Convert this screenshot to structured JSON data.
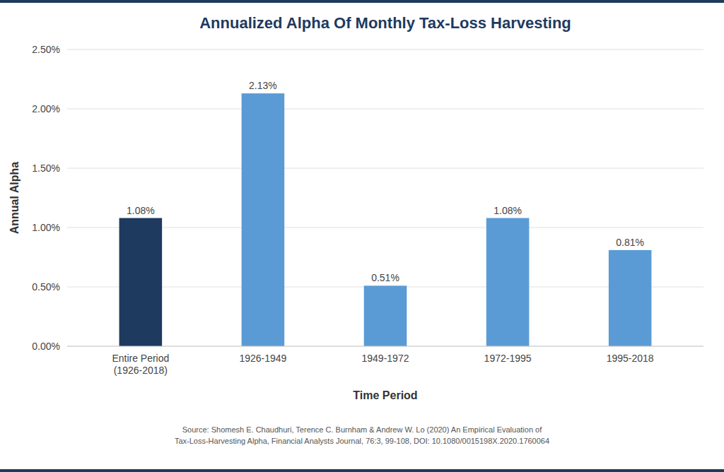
{
  "chart_data": {
    "type": "bar",
    "title": "Annualized Alpha Of Monthly Tax-Loss Harvesting",
    "xlabel": "Time Period",
    "ylabel": "Annual Alpha",
    "categories": [
      "Entire Period\n(1926-2018)",
      "1926-1949",
      "1949-1972",
      "1972-1995",
      "1995-2018"
    ],
    "values": [
      0.0108,
      0.0213,
      0.0051,
      0.0108,
      0.0081
    ],
    "value_labels": [
      "1.08%",
      "2.13%",
      "0.51%",
      "1.08%",
      "0.81%"
    ],
    "colors": [
      "#1e3a5f",
      "#5b9bd5",
      "#5b9bd5",
      "#5b9bd5",
      "#5b9bd5"
    ],
    "ylim": [
      0,
      0.025
    ],
    "yticks": [
      {
        "value": 0.0,
        "label": "0.00%"
      },
      {
        "value": 0.005,
        "label": "0.50%"
      },
      {
        "value": 0.01,
        "label": "1.00%"
      },
      {
        "value": 0.015,
        "label": "1.50%"
      },
      {
        "value": 0.02,
        "label": "2.00%"
      },
      {
        "value": 0.025,
        "label": "2.50%"
      }
    ],
    "grid": true,
    "data_labels": true,
    "source": "Source: Shomesh E. Chaudhuri, Terence C. Burnham & Andrew W. Lo (2020) An Empirical Evaluation of\nTax-Loss-Harvesting Alpha, Financial Analysts Journal, 76:3, 99-108, DOI: 10.1080/0015198X.2020.1760064"
  }
}
